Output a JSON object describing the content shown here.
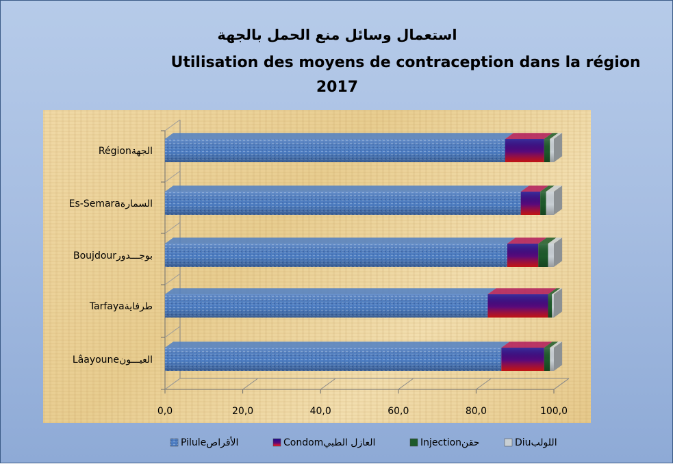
{
  "title_ar": "استعمال وسائل منع الحمل بالجهة",
  "title_fr": "Utilisation des moyens de contraception dans la région",
  "title_year": "2017",
  "chart_data": {
    "type": "bar",
    "orientation": "horizontal",
    "stacked": true,
    "categories": [
      "Régionالجهة",
      "Es-Semaraالسمارة",
      "Boujdourبوجـــدور",
      "Tarfayaطرفاية",
      "Lâayouneالعيـــون"
    ],
    "series": [
      {
        "name": "Piluleالأقراص",
        "color": "#4f7fc4",
        "values": [
          87.5,
          91.5,
          88.0,
          83.0,
          86.5
        ]
      },
      {
        "name": "Condomالعازل الطبي",
        "color": "#b01a5a",
        "values": [
          10.0,
          5.0,
          8.0,
          15.5,
          11.0
        ]
      },
      {
        "name": "Injectionحقن",
        "color": "#1d5a2a",
        "values": [
          1.5,
          1.5,
          2.5,
          1.0,
          1.5
        ]
      },
      {
        "name": "Diuاللولب",
        "color": "#c8cfd4",
        "values": [
          1.0,
          2.0,
          1.5,
          0.5,
          1.0
        ]
      }
    ],
    "xlim": [
      0,
      100
    ],
    "xticks": [
      "0,0",
      "20,0",
      "40,0",
      "60,0",
      "80,0",
      "100,0"
    ],
    "legend_position": "bottom"
  }
}
